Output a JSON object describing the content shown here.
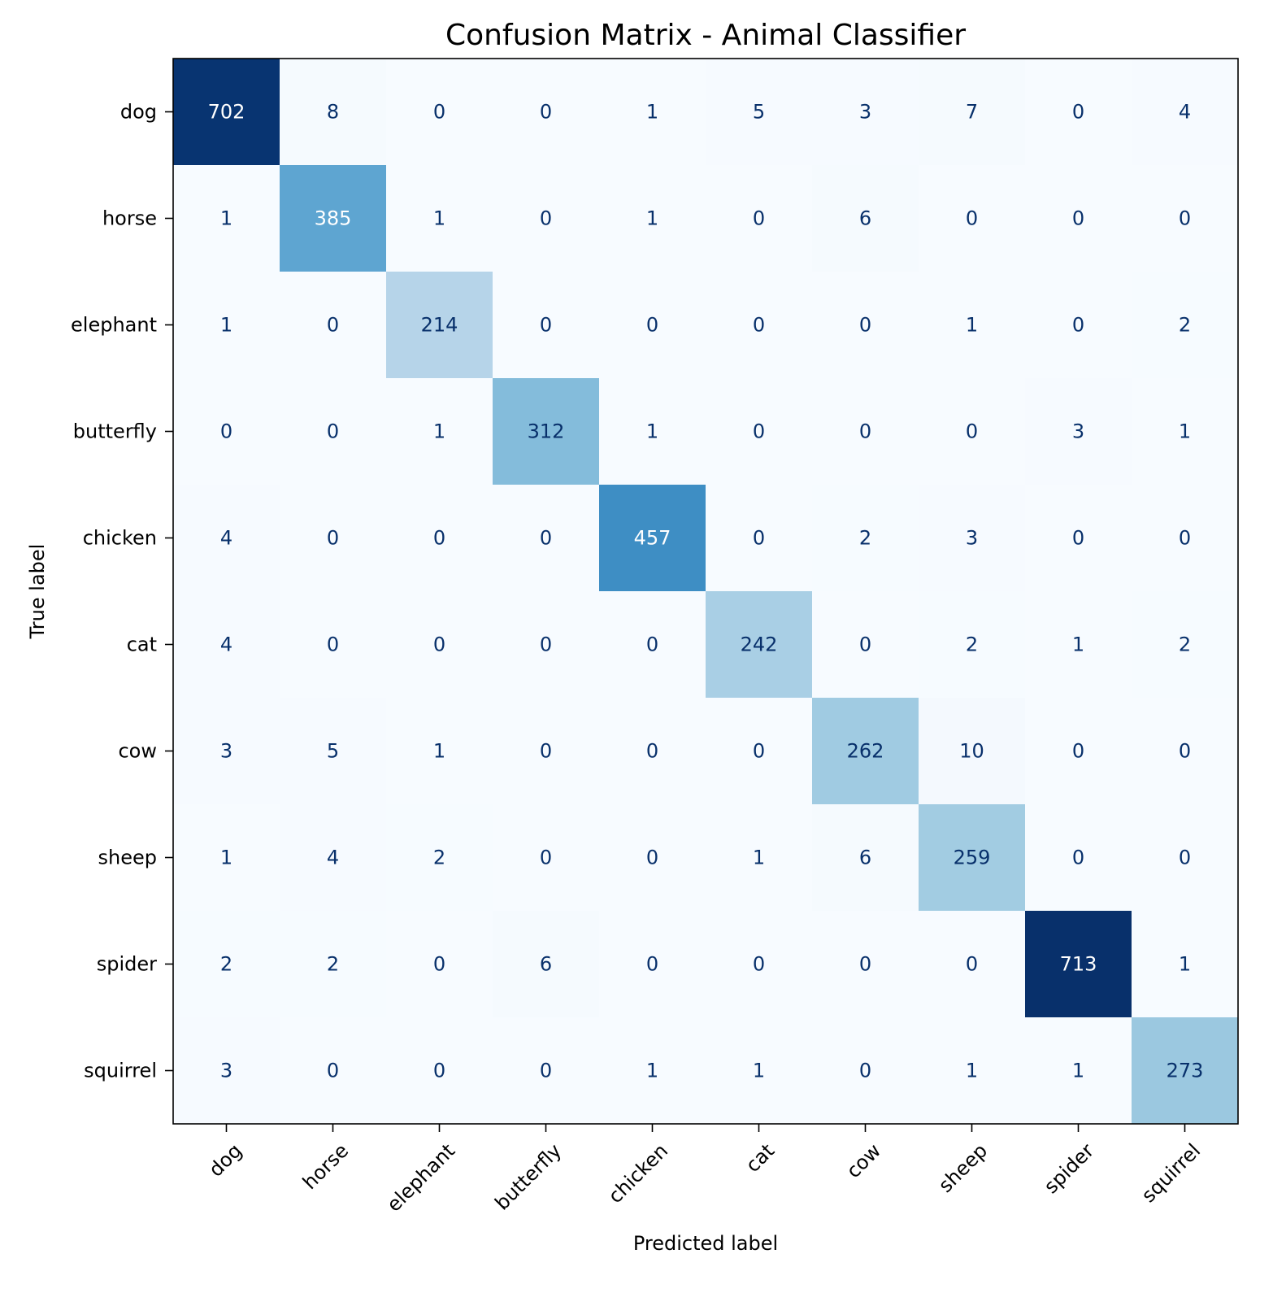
{
  "chart_data": {
    "type": "heatmap",
    "title": "Confusion Matrix - Animal Classifier",
    "xlabel": "Predicted label",
    "ylabel": "True label",
    "colormap": "Blues",
    "colormap_stops": [
      "#f7fbff",
      "#deebf7",
      "#c6dbef",
      "#9ecae1",
      "#6baed6",
      "#4292c6",
      "#2171b5",
      "#08519c",
      "#08306b"
    ],
    "text_colors": {
      "dark": "#08306b",
      "light": "#ffffff"
    },
    "x_categories": [
      "dog",
      "horse",
      "elephant",
      "butterfly",
      "chicken",
      "cat",
      "cow",
      "sheep",
      "spider",
      "squirrel"
    ],
    "y_categories": [
      "dog",
      "horse",
      "elephant",
      "butterfly",
      "chicken",
      "cat",
      "cow",
      "sheep",
      "spider",
      "squirrel"
    ],
    "values": [
      [
        702,
        8,
        0,
        0,
        1,
        5,
        3,
        7,
        0,
        4
      ],
      [
        1,
        385,
        1,
        0,
        1,
        0,
        6,
        0,
        0,
        0
      ],
      [
        1,
        0,
        214,
        0,
        0,
        0,
        0,
        1,
        0,
        2
      ],
      [
        0,
        0,
        1,
        312,
        1,
        0,
        0,
        0,
        3,
        1
      ],
      [
        4,
        0,
        0,
        0,
        457,
        0,
        2,
        3,
        0,
        0
      ],
      [
        4,
        0,
        0,
        0,
        0,
        242,
        0,
        2,
        1,
        2
      ],
      [
        3,
        5,
        1,
        0,
        0,
        0,
        262,
        10,
        0,
        0
      ],
      [
        1,
        4,
        2,
        0,
        0,
        1,
        6,
        259,
        0,
        0
      ],
      [
        2,
        2,
        0,
        6,
        0,
        0,
        0,
        0,
        713,
        1
      ],
      [
        3,
        0,
        0,
        0,
        1,
        1,
        0,
        1,
        1,
        273
      ]
    ],
    "value_range": [
      0,
      713
    ],
    "colorbar": false
  }
}
